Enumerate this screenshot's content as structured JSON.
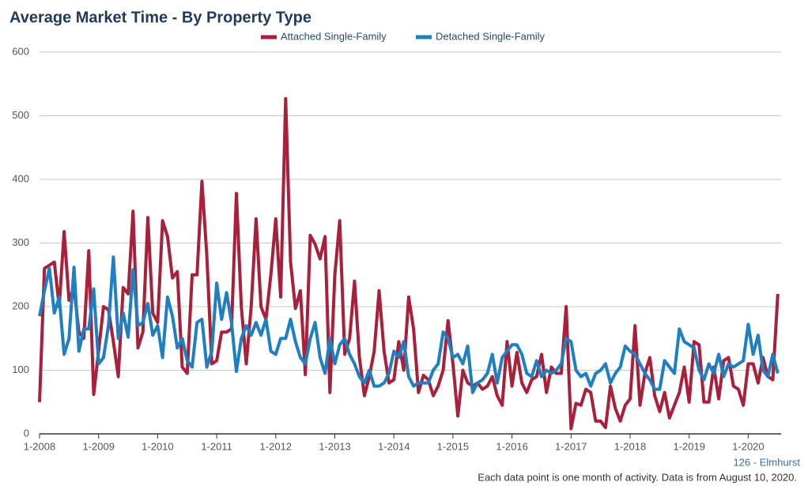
{
  "chart_data": {
    "type": "line",
    "title": "Average Market Time - By Property Type",
    "categories": [
      "1-2008",
      null,
      null,
      null,
      null,
      null,
      null,
      null,
      null,
      null,
      null,
      null,
      "1-2009",
      null,
      null,
      null,
      null,
      null,
      null,
      null,
      null,
      null,
      null,
      null,
      "1-2010",
      null,
      null,
      null,
      null,
      null,
      null,
      null,
      null,
      null,
      null,
      null,
      "1-2011",
      null,
      null,
      null,
      null,
      null,
      null,
      null,
      null,
      null,
      null,
      null,
      "1-2012",
      null,
      null,
      null,
      null,
      null,
      null,
      null,
      null,
      null,
      null,
      null,
      "1-2013",
      null,
      null,
      null,
      null,
      null,
      null,
      null,
      null,
      null,
      null,
      null,
      "1-2014",
      null,
      null,
      null,
      null,
      null,
      null,
      null,
      null,
      null,
      null,
      null,
      "1-2015",
      null,
      null,
      null,
      null,
      null,
      null,
      null,
      null,
      null,
      null,
      null,
      "1-2016",
      null,
      null,
      null,
      null,
      null,
      null,
      null,
      null,
      null,
      null,
      null,
      "1-2017",
      null,
      null,
      null,
      null,
      null,
      null,
      null,
      null,
      null,
      null,
      null,
      "1-2018",
      null,
      null,
      null,
      null,
      null,
      null,
      null,
      null,
      null,
      null,
      null,
      "1-2019",
      null,
      null,
      null,
      null,
      null,
      null,
      null,
      null,
      null,
      null,
      null,
      "1-2020",
      null,
      null,
      null,
      null,
      null,
      null
    ],
    "series": [
      {
        "name": "Attached Single-Family",
        "color": "#a8203a",
        "values": [
          50,
          260,
          265,
          270,
          200,
          318,
          210,
          230,
          160,
          150,
          288,
          62,
          130,
          200,
          195,
          145,
          90,
          230,
          220,
          350,
          135,
          160,
          340,
          190,
          175,
          335,
          310,
          245,
          255,
          105,
          95,
          250,
          250,
          397,
          280,
          110,
          115,
          160,
          160,
          165,
          378,
          200,
          110,
          200,
          338,
          200,
          180,
          250,
          338,
          215,
          527,
          270,
          197,
          225,
          93,
          312,
          298,
          275,
          310,
          65,
          250,
          335,
          125,
          150,
          240,
          120,
          60,
          90,
          130,
          225,
          130,
          80,
          85,
          145,
          100,
          215,
          165,
          65,
          92,
          85,
          60,
          75,
          100,
          178,
          110,
          28,
          100,
          80,
          75,
          80,
          70,
          75,
          90,
          60,
          45,
          145,
          75,
          128,
          80,
          65,
          85,
          90,
          125,
          65,
          105,
          95,
          95,
          200,
          8,
          48,
          45,
          70,
          65,
          20,
          20,
          10,
          75,
          40,
          20,
          45,
          55,
          170,
          45,
          95,
          120,
          60,
          35,
          65,
          25,
          45,
          65,
          105,
          50,
          145,
          140,
          50,
          50,
          105,
          55,
          115,
          120,
          75,
          70,
          45,
          110,
          110,
          80,
          120,
          90,
          85,
          220
        ]
      },
      {
        "name": "Detached Single-Family",
        "color": "#1f7fc0",
        "values": [
          185,
          225,
          260,
          190,
          215,
          125,
          150,
          262,
          130,
          165,
          165,
          228,
          110,
          120,
          170,
          278,
          150,
          190,
          152,
          258,
          170,
          175,
          205,
          155,
          170,
          120,
          215,
          185,
          135,
          150,
          115,
          105,
          175,
          180,
          105,
          130,
          237,
          180,
          222,
          175,
          98,
          150,
          170,
          155,
          175,
          155,
          180,
          130,
          125,
          150,
          150,
          180,
          145,
          120,
          110,
          150,
          175,
          120,
          95,
          150,
          110,
          140,
          150,
          125,
          110,
          90,
          80,
          100,
          75,
          75,
          80,
          95,
          130,
          120,
          145,
          90,
          75,
          80,
          80,
          80,
          100,
          110,
          160,
          150,
          120,
          125,
          110,
          138,
          65,
          80,
          85,
          95,
          125,
          80,
          120,
          130,
          140,
          140,
          125,
          95,
          90,
          115,
          90,
          100,
          95,
          100,
          110,
          150,
          145,
          100,
          90,
          95,
          75,
          95,
          100,
          110,
          80,
          95,
          105,
          138,
          130,
          125,
          110,
          95,
          85,
          70,
          70,
          115,
          105,
          95,
          165,
          145,
          140,
          135,
          100,
          85,
          110,
          95,
          125,
          90,
          110,
          105,
          110,
          115,
          172,
          125,
          155,
          100,
          90,
          125,
          95
        ]
      }
    ],
    "ylim": [
      0,
      600
    ],
    "yticks": [
      0,
      100,
      200,
      300,
      400,
      500,
      600
    ],
    "grid": true,
    "area_label": "126 - Elmhurst",
    "footnote": "Each data point is one month of activity. Data is from August 10, 2020."
  }
}
